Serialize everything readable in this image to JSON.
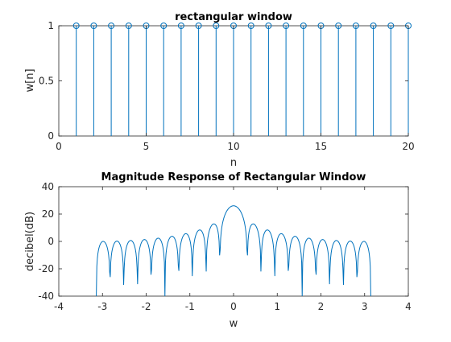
{
  "chart_data": [
    {
      "type": "stem",
      "title": "rectangular window",
      "xlabel": "n",
      "ylabel": "w[n]",
      "xlim": [
        0,
        20
      ],
      "ylim": [
        0,
        1
      ],
      "xticks": [
        "0",
        "5",
        "10",
        "15",
        "20"
      ],
      "yticks": [
        "0",
        "0.5",
        "1"
      ],
      "x": [
        1,
        2,
        3,
        4,
        5,
        6,
        7,
        8,
        9,
        10,
        11,
        12,
        13,
        14,
        15,
        16,
        17,
        18,
        19,
        20
      ],
      "y": [
        1,
        1,
        1,
        1,
        1,
        1,
        1,
        1,
        1,
        1,
        1,
        1,
        1,
        1,
        1,
        1,
        1,
        1,
        1,
        1
      ],
      "grid": false,
      "color": "#0072bd"
    },
    {
      "type": "line",
      "title": "Magnitude Response of Rectangular Window",
      "xlabel": "w",
      "ylabel": "decibel(dB)",
      "xlim": [
        -4,
        4
      ],
      "ylim": [
        -40,
        40
      ],
      "xticks": [
        "-4",
        "-3",
        "-2",
        "-1",
        "0",
        "1",
        "2",
        "3",
        "4"
      ],
      "yticks": [
        "-40",
        "-20",
        "0",
        "20",
        "40"
      ],
      "series": [
        {
          "window_length": 20,
          "w_range": [
            -3.1416,
            3.1416
          ],
          "peak_db": 26.0
        }
      ],
      "grid": false,
      "color": "#0072bd"
    }
  ]
}
